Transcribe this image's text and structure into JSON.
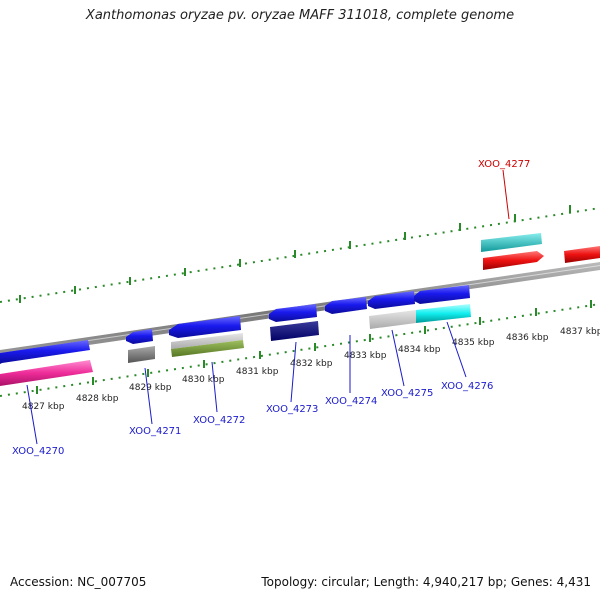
{
  "title": "Xanthomonas oryzae pv. oryzae MAFF 311018, complete genome",
  "footer": {
    "accession": "Accession: NC_007705",
    "topology": "Topology: circular; Length: 4,940,217 bp; Genes: 4,431"
  },
  "colors": {
    "forward_gene": "#1a1aee",
    "highlight_gene": "#ee1111",
    "backbone": "#888888",
    "tick": "#2a8a2a",
    "label_blue": "#1a1acc",
    "label_red": "#cc0000"
  },
  "scale_labels": [
    "4827 kbp",
    "4828 kbp",
    "4829 kbp",
    "4830 kbp",
    "4831 kbp",
    "4832 kbp",
    "4833 kbp",
    "4834 kbp",
    "4835 kbp",
    "4836 kbp",
    "4837 kbp"
  ],
  "gene_labels": [
    {
      "text": "XOO_4270",
      "color": "blue"
    },
    {
      "text": "XOO_4271",
      "color": "blue"
    },
    {
      "text": "XOO_4272",
      "color": "blue"
    },
    {
      "text": "XOO_4273",
      "color": "blue"
    },
    {
      "text": "XOO_4274",
      "color": "blue"
    },
    {
      "text": "XOO_4275",
      "color": "blue"
    },
    {
      "text": "XOO_4276",
      "color": "blue"
    },
    {
      "text": "XOO_4277",
      "color": "red"
    }
  ]
}
